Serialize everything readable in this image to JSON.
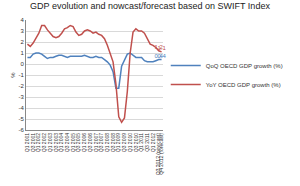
{
  "chart_data": {
    "type": "line",
    "title": "GDP evolution and nowcast/forecast based on SWIFT Index",
    "y_label": "%",
    "categories": [
      "Q1 2001",
      null,
      "Q3 2001",
      null,
      "Q1 2002",
      null,
      "Q3 2002",
      null,
      "Q1 2003",
      null,
      "Q3 2003",
      null,
      "Q1 2004",
      null,
      "Q3 2004",
      null,
      "Q1 2005",
      null,
      "Q3 2005",
      null,
      "Q1 2006",
      null,
      "Q3 2006",
      null,
      "Q1 2007",
      null,
      "Q3 2007",
      null,
      "Q1 2008",
      null,
      "Q3 2008",
      null,
      "Q1 2009",
      null,
      "Q3 2009",
      null,
      "Q1 2010",
      null,
      "Q3 2010",
      null,
      "Q1 2011",
      null,
      "Q3 2011",
      null,
      "Q1 2012",
      null,
      "Q3 2012 (nowcast)",
      "Q4 2012 (forecast)"
    ],
    "series": [
      {
        "name": "QoQ OECD GDP growth (%)",
        "color": "#4f81bd",
        "values": [
          0.6,
          0.6,
          0.9,
          1.0,
          1.0,
          0.9,
          0.7,
          0.5,
          0.6,
          0.6,
          0.7,
          0.8,
          0.8,
          0.7,
          0.6,
          0.7,
          0.7,
          0.7,
          0.7,
          0.7,
          0.8,
          0.7,
          0.6,
          0.6,
          0.7,
          0.6,
          0.6,
          0.4,
          0.2,
          -0.1,
          -0.7,
          -2.2,
          -2.2,
          -0.2,
          0.4,
          0.9,
          1.0,
          0.8,
          0.6,
          0.6,
          0.6,
          0.3,
          0.2,
          0.2,
          0.2,
          0.3,
          0.4,
          0.4
        ],
        "value_labels": [
          null,
          null,
          null,
          null,
          null,
          null,
          null,
          null,
          null,
          null,
          null,
          null,
          null,
          null,
          null,
          null,
          null,
          null,
          null,
          null,
          null,
          null,
          null,
          null,
          null,
          null,
          null,
          null,
          null,
          null,
          null,
          null,
          null,
          null,
          null,
          null,
          null,
          null,
          null,
          null,
          null,
          null,
          null,
          null,
          null,
          null,
          "0.4",
          "0.4"
        ]
      },
      {
        "name": "YoY OECD GDP growth (%)",
        "color": "#c0504d",
        "values": [
          1.8,
          1.6,
          1.9,
          2.3,
          2.8,
          3.5,
          3.5,
          3.1,
          2.8,
          2.5,
          2.4,
          2.5,
          2.8,
          3.2,
          3.3,
          3.5,
          3.4,
          2.9,
          2.6,
          2.7,
          3.0,
          3.1,
          3.0,
          2.8,
          2.9,
          2.7,
          2.6,
          2.3,
          1.7,
          1.0,
          0.2,
          -1.8,
          -4.8,
          -5.3,
          -4.9,
          -2.5,
          1.0,
          2.9,
          3.2,
          3.0,
          3.0,
          2.8,
          2.3,
          1.8,
          1.7,
          1.5,
          1.2,
          1.1
        ],
        "value_labels": [
          null,
          null,
          null,
          null,
          null,
          null,
          null,
          null,
          null,
          null,
          null,
          null,
          null,
          null,
          null,
          null,
          null,
          null,
          null,
          null,
          null,
          null,
          null,
          null,
          null,
          null,
          null,
          null,
          null,
          null,
          null,
          null,
          null,
          null,
          null,
          null,
          null,
          null,
          null,
          null,
          null,
          null,
          null,
          null,
          null,
          null,
          "1.2",
          "1.1"
        ]
      }
    ],
    "ylim": [
      -6,
      4
    ],
    "yticks": [
      -6,
      -5,
      -4,
      -3,
      -2,
      -1,
      0,
      1,
      2,
      3,
      4
    ],
    "grid": true,
    "legend": "right",
    "data_labels": true
  }
}
